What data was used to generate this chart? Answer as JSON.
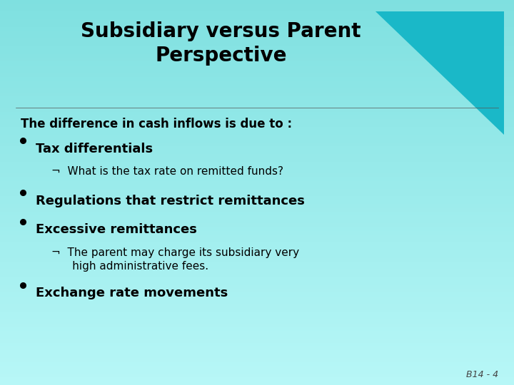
{
  "title_line1": "Subsidiary versus Parent",
  "title_line2": "Perspective",
  "bg_color": "#9de8e8",
  "triangle_color": "#1ab8c8",
  "text_color": "#000000",
  "footer": "B14 - 4",
  "intro_text": "The difference in cash inflows is due to :",
  "title_fontsize": 20,
  "intro_fontsize": 12,
  "bullet_fontsize": 13,
  "sub_fontsize": 11,
  "footer_fontsize": 9
}
